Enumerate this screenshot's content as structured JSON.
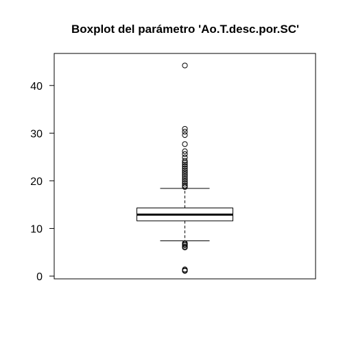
{
  "chart_data": {
    "type": "boxplot",
    "title": "Boxplot del parámetro 'Ao.T.desc.por.SC'",
    "xlabel": "",
    "ylabel": "",
    "ylim": [
      0,
      45
    ],
    "yticks": [
      0,
      10,
      20,
      30,
      40
    ],
    "grid": false,
    "box": {
      "lower_whisker": 7.4,
      "q1": 11.6,
      "median": 12.9,
      "q3": 14.3,
      "upper_whisker": 18.4
    },
    "outliers": [
      44.2,
      30.9,
      30.3,
      29.6,
      27.7,
      26.2,
      25.6,
      24.9,
      24.2,
      23.8,
      23.4,
      23.0,
      22.6,
      22.2,
      21.8,
      21.4,
      21.0,
      20.6,
      20.2,
      19.8,
      19.4,
      19.0,
      18.7,
      6.9,
      6.7,
      6.5,
      6.2,
      6.0,
      1.4,
      1.2,
      1.1
    ]
  }
}
